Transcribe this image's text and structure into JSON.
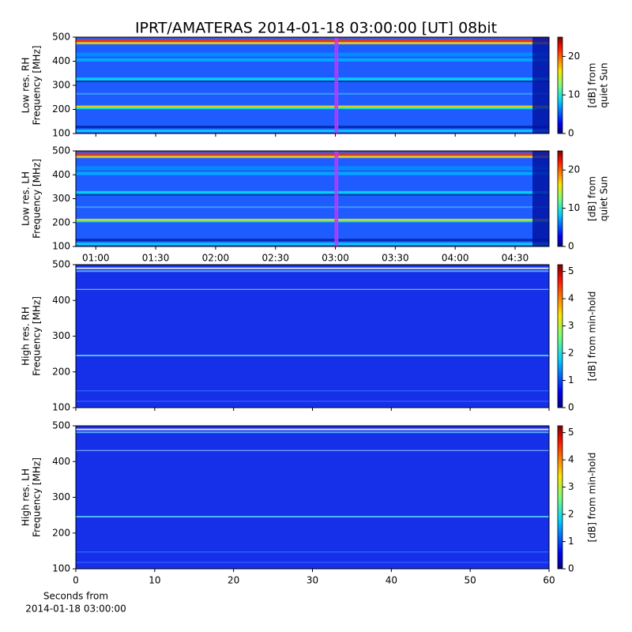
{
  "chart_data": [
    {
      "type": "spectrogram",
      "title": "IPRT/AMATERAS 2014-01-18 03:00:00 [UT]   08bit",
      "ylabel": [
        "Low res. RH",
        "Frequency [MHz]"
      ],
      "ylim": [
        100,
        500
      ],
      "yticks": [
        100,
        200,
        300,
        400,
        500
      ],
      "xlim": [
        50,
        287
      ],
      "xticks": [
        60,
        90,
        120,
        150,
        180,
        210,
        240,
        270
      ],
      "xtick_labels": false,
      "highlight": [
        180,
        181
      ],
      "highlight_color": "#cc33ff",
      "colormap": "jet",
      "colorbar": {
        "label": [
          "[dB] from",
          "quiet Sun"
        ],
        "clim": [
          0,
          25
        ],
        "ticks": [
          0,
          10,
          20
        ]
      }
    },
    {
      "type": "spectrogram",
      "ylabel": [
        "Low res. LH",
        "Frequency [MHz]"
      ],
      "ylim": [
        100,
        500
      ],
      "yticks": [
        100,
        200,
        300,
        400,
        500
      ],
      "xlim": [
        50,
        287
      ],
      "xticks": [
        {
          "value": 60,
          "label": "01:00"
        },
        {
          "value": 90,
          "label": "01:30"
        },
        {
          "value": 120,
          "label": "02:00"
        },
        {
          "value": 150,
          "label": "02:30"
        },
        {
          "value": 180,
          "label": "03:00"
        },
        {
          "value": 210,
          "label": "03:30"
        },
        {
          "value": 240,
          "label": "04:00"
        },
        {
          "value": 270,
          "label": "04:30"
        }
      ],
      "xtick_labels": true,
      "highlight": [
        180,
        181
      ],
      "highlight_color": "#cc33ff",
      "colormap": "jet",
      "colorbar": {
        "label": [
          "[dB] from",
          "quiet Sun"
        ],
        "clim": [
          0,
          25
        ],
        "ticks": [
          0,
          10,
          20
        ]
      }
    },
    {
      "type": "spectrogram",
      "ylabel": [
        "High res. RH",
        "Frequency [MHz]"
      ],
      "ylim": [
        100,
        500
      ],
      "yticks": [
        100,
        200,
        300,
        400,
        500
      ],
      "xlim": [
        0,
        60
      ],
      "xticks": [
        0,
        10,
        20,
        30,
        40,
        50,
        60
      ],
      "xtick_labels": false,
      "colormap": "jet",
      "colorbar": {
        "label": [
          "[dB] from min-hold"
        ],
        "clim": [
          0,
          5.25
        ],
        "ticks": [
          0,
          1,
          2,
          3,
          4,
          5
        ]
      }
    },
    {
      "type": "spectrogram",
      "ylabel": [
        "High res. LH",
        "Frequency [MHz]"
      ],
      "ylim": [
        100,
        500
      ],
      "yticks": [
        100,
        200,
        300,
        400,
        500
      ],
      "xlim": [
        0,
        60
      ],
      "xticks": [
        0,
        10,
        20,
        30,
        40,
        50,
        60
      ],
      "xtick_labels": true,
      "xlabel": [
        "Seconds from",
        "2014-01-18 03:00:00"
      ],
      "colormap": "jet",
      "colorbar": {
        "label": [
          "[dB] from min-hold"
        ],
        "clim": [
          0,
          5.25
        ],
        "ticks": [
          0,
          1,
          2,
          3,
          4,
          5
        ]
      }
    }
  ]
}
